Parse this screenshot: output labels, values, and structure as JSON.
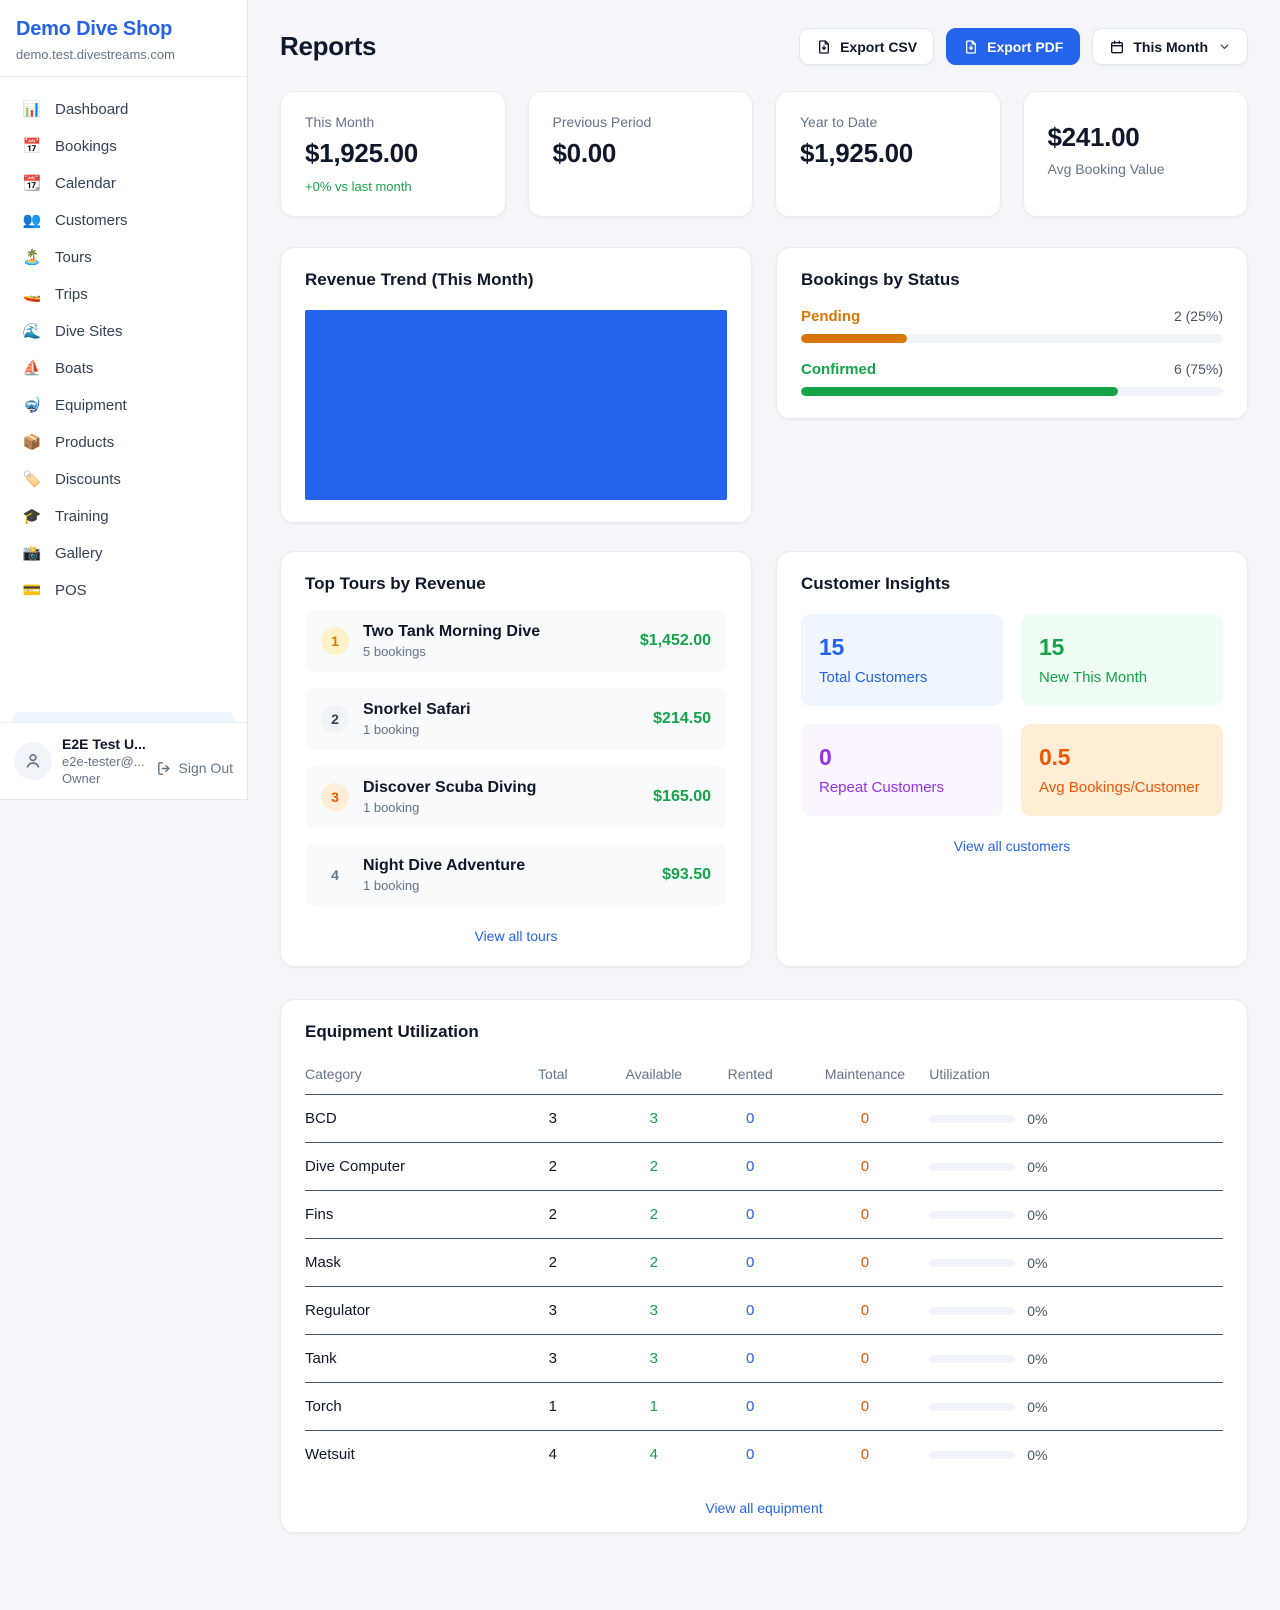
{
  "colors": {
    "accent": "#2563eb",
    "green": "#16a34a",
    "orange": "#d97706",
    "red_orange": "#ea580c",
    "purple": "#9333ea"
  },
  "sidebar": {
    "brand": {
      "name": "Demo Dive Shop",
      "domain": "demo.test.divestreams.com"
    },
    "nav": [
      {
        "id": "dashboard",
        "icon": "📊",
        "icon_name": "dashboard-icon",
        "label": "Dashboard"
      },
      {
        "id": "bookings",
        "icon": "📅",
        "icon_name": "bookings-icon",
        "label": "Bookings"
      },
      {
        "id": "calendar",
        "icon": "📆",
        "icon_name": "calendar-icon",
        "label": "Calendar"
      },
      {
        "id": "customers",
        "icon": "👥",
        "icon_name": "customers-icon",
        "label": "Customers"
      },
      {
        "id": "tours",
        "icon": "🏝️",
        "icon_name": "tours-icon",
        "label": "Tours"
      },
      {
        "id": "trips",
        "icon": "🚤",
        "icon_name": "trips-icon",
        "label": "Trips"
      },
      {
        "id": "dive-sites",
        "icon": "🌊",
        "icon_name": "dive-sites-icon",
        "label": "Dive Sites"
      },
      {
        "id": "boats",
        "icon": "⛵",
        "icon_name": "boats-icon",
        "label": "Boats"
      },
      {
        "id": "equipment",
        "icon": "🤿",
        "icon_name": "equipment-icon",
        "label": "Equipment"
      },
      {
        "id": "products",
        "icon": "📦",
        "icon_name": "products-icon",
        "label": "Products"
      },
      {
        "id": "discounts",
        "icon": "🏷️",
        "icon_name": "discounts-icon",
        "label": "Discounts"
      },
      {
        "id": "training",
        "icon": "🎓",
        "icon_name": "training-icon",
        "label": "Training"
      },
      {
        "id": "gallery",
        "icon": "📸",
        "icon_name": "gallery-icon",
        "label": "Gallery"
      },
      {
        "id": "pos",
        "icon": "💳",
        "icon_name": "pos-icon",
        "label": "POS"
      }
    ],
    "user": {
      "name": "E2E Test U...",
      "email": "e2e-tester@...",
      "role": "Owner",
      "sign_out_label": "Sign Out"
    }
  },
  "header": {
    "title": "Reports",
    "export_csv_label": "Export CSV",
    "export_pdf_label": "Export PDF",
    "period_label": "This Month"
  },
  "stats": [
    {
      "label": "This Month",
      "value": "$1,925.00",
      "delta": "+0% vs last month"
    },
    {
      "label": "Previous Period",
      "value": "$0.00"
    },
    {
      "label": "Year to Date",
      "value": "$1,925.00"
    },
    {
      "label": "Avg Booking Value",
      "value": "$241.00",
      "value_first": true
    }
  ],
  "revenue_trend": {
    "title": "Revenue Trend (This Month)",
    "bar_color": "#2563eb"
  },
  "bookings_by_status": {
    "title": "Bookings by Status",
    "rows": [
      {
        "label": "Pending",
        "count_text": "2 (25%)",
        "pct": 25,
        "color": "#d97706"
      },
      {
        "label": "Confirmed",
        "count_text": "6 (75%)",
        "pct": 75,
        "color": "#16a34a"
      }
    ]
  },
  "top_tours": {
    "title": "Top Tours by Revenue",
    "view_all_label": "View all tours",
    "items": [
      {
        "rank": "1",
        "name": "Two Tank Morning Dive",
        "bookings": "5 bookings",
        "amount": "$1,452.00",
        "badge_bg": "#fef3c7",
        "badge_fg": "#d97706"
      },
      {
        "rank": "2",
        "name": "Snorkel Safari",
        "bookings": "1 booking",
        "amount": "$214.50",
        "badge_bg": "#f1f5f9",
        "badge_fg": "#334155"
      },
      {
        "rank": "3",
        "name": "Discover Scuba Diving",
        "bookings": "1 booking",
        "amount": "$165.00",
        "badge_bg": "#ffedd5",
        "badge_fg": "#ea580c"
      },
      {
        "rank": "4",
        "name": "Night Dive Adventure",
        "bookings": "1 booking",
        "amount": "$93.50",
        "badge_bg": "transparent",
        "badge_fg": "#64748b"
      }
    ]
  },
  "customer_insights": {
    "title": "Customer Insights",
    "view_all_label": "View all customers",
    "tiles": [
      {
        "value": "15",
        "label": "Total Customers",
        "fg": "#2563eb",
        "bg": "#eff6ff"
      },
      {
        "value": "15",
        "label": "New This Month",
        "fg": "#16a34a",
        "bg": "#f0fdf4"
      },
      {
        "value": "0",
        "label": "Repeat Customers",
        "fg": "#9333ea",
        "bg": "#faf5ff"
      },
      {
        "value": "0.5",
        "label": "Avg Bookings/Customer",
        "fg": "#ea580c",
        "bg": "#ffedd5"
      }
    ]
  },
  "equipment": {
    "title": "Equipment Utilization",
    "view_all_label": "View all equipment",
    "columns": [
      "Category",
      "Total",
      "Available",
      "Rented",
      "Maintenance",
      "Utilization"
    ],
    "value_colors": {
      "total": "#0f172a",
      "available": "#16a34a",
      "rented": "#2563eb",
      "maintenance": "#ea580c"
    },
    "rows": [
      {
        "category": "BCD",
        "total": "3",
        "available": "3",
        "rented": "0",
        "maintenance": "0",
        "utilization": "0%",
        "util_pct": 0
      },
      {
        "category": "Dive Computer",
        "total": "2",
        "available": "2",
        "rented": "0",
        "maintenance": "0",
        "utilization": "0%",
        "util_pct": 0
      },
      {
        "category": "Fins",
        "total": "2",
        "available": "2",
        "rented": "0",
        "maintenance": "0",
        "utilization": "0%",
        "util_pct": 0
      },
      {
        "category": "Mask",
        "total": "2",
        "available": "2",
        "rented": "0",
        "maintenance": "0",
        "utilization": "0%",
        "util_pct": 0
      },
      {
        "category": "Regulator",
        "total": "3",
        "available": "3",
        "rented": "0",
        "maintenance": "0",
        "utilization": "0%",
        "util_pct": 0
      },
      {
        "category": "Tank",
        "total": "3",
        "available": "3",
        "rented": "0",
        "maintenance": "0",
        "utilization": "0%",
        "util_pct": 0
      },
      {
        "category": "Torch",
        "total": "1",
        "available": "1",
        "rented": "0",
        "maintenance": "0",
        "utilization": "0%",
        "util_pct": 0
      },
      {
        "category": "Wetsuit",
        "total": "4",
        "available": "4",
        "rented": "0",
        "maintenance": "0",
        "utilization": "0%",
        "util_pct": 0
      }
    ]
  },
  "chart_data": [
    {
      "type": "bar",
      "title": "Revenue Trend (This Month)",
      "categories": [
        "This Month"
      ],
      "values": [
        1925
      ],
      "xlabel": "",
      "ylabel": "",
      "legend": false,
      "grid": false,
      "note": "Single full-width solid blue bar filling the entire plot area; no axes or tick labels rendered."
    },
    {
      "type": "bar",
      "title": "Bookings by Status",
      "categories": [
        "Pending",
        "Confirmed"
      ],
      "values": [
        2,
        6
      ],
      "value_labels": [
        "2 (25%)",
        "6 (75%)"
      ],
      "percentages": [
        25,
        75
      ],
      "colors": [
        "#d97706",
        "#16a34a"
      ],
      "orientation": "horizontal-progress",
      "xlim": [
        0,
        8
      ]
    }
  ]
}
